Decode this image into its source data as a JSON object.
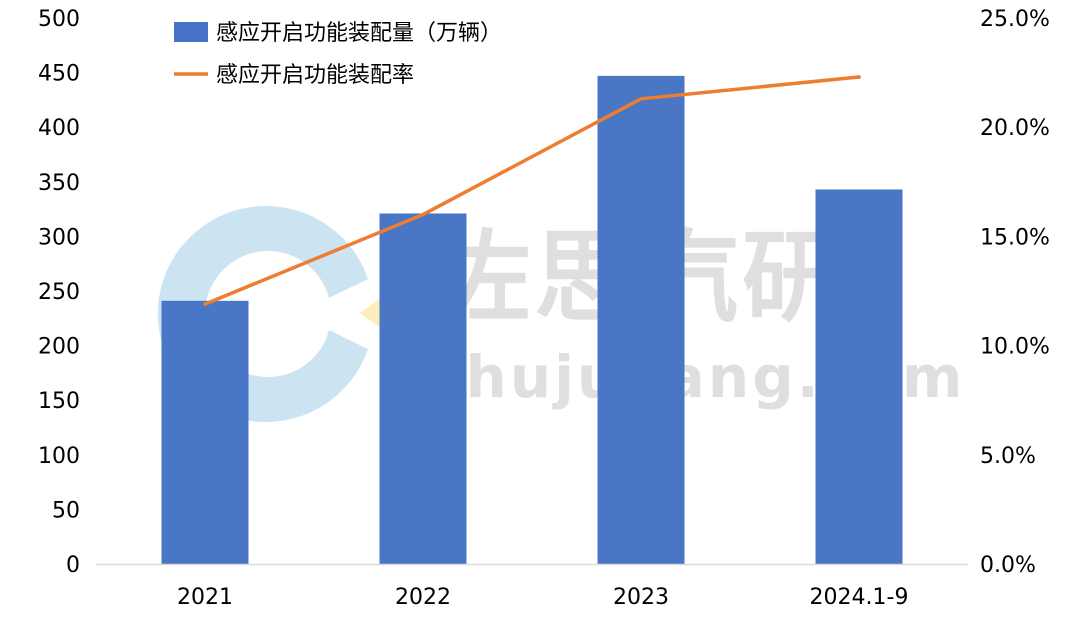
{
  "colors": {
    "bar": "#4472C4",
    "line": "#ED7D31",
    "axis": "#D9D9D9",
    "watermark_logo": "#BFDDEF",
    "watermark_dot": "#FFE9A8"
  },
  "watermark": {
    "chinese": "佐思汽研",
    "url": "shujubang.com",
    "logo_icon": "c-logo-icon"
  },
  "chart_data": {
    "type": "bar",
    "categories": [
      "2021",
      "2022",
      "2023",
      "2024.1-9"
    ],
    "series": [
      {
        "name": "感应开启功能装配量（万辆）",
        "type": "bar",
        "axis": "left",
        "values": [
          241,
          321,
          447,
          343
        ]
      },
      {
        "name": "感应开启功能装配率",
        "type": "line",
        "axis": "right",
        "values": [
          0.119,
          0.16,
          0.213,
          0.223
        ]
      }
    ],
    "y_left": {
      "min": 0,
      "max": 500,
      "ticks": [
        "0",
        "50",
        "100",
        "150",
        "200",
        "250",
        "300",
        "350",
        "400",
        "450",
        "500"
      ]
    },
    "y_right": {
      "min": 0,
      "max": 0.25,
      "ticks": [
        "0.0%",
        "5.0%",
        "10.0%",
        "15.0%",
        "20.0%",
        "25.0%"
      ]
    },
    "legend": "top-left",
    "grid": false
  }
}
